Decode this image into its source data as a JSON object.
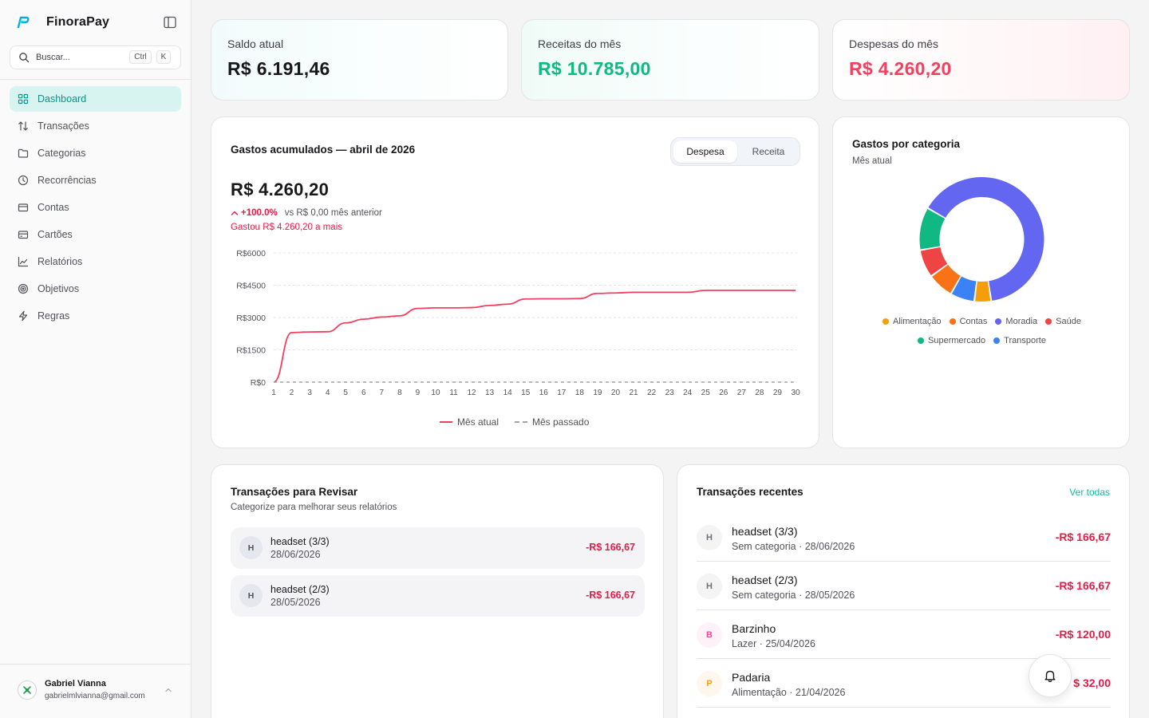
{
  "app": {
    "name": "FinoraPay",
    "accent": "#14b8a6"
  },
  "search": {
    "placeholder": "Buscar...",
    "kbd_ctrl": "Ctrl",
    "kbd_k": "K"
  },
  "nav": [
    {
      "label": "Dashboard",
      "icon": "grid-icon",
      "active": true
    },
    {
      "label": "Transações",
      "icon": "arrows-up-down-icon"
    },
    {
      "label": "Categorias",
      "icon": "folder-icon"
    },
    {
      "label": "Recorrências",
      "icon": "clock-icon"
    },
    {
      "label": "Contas",
      "icon": "wallet-icon"
    },
    {
      "label": "Cartões",
      "icon": "credit-card-icon"
    },
    {
      "label": "Relatórios",
      "icon": "chart-line-icon"
    },
    {
      "label": "Objetivos",
      "icon": "target-icon"
    },
    {
      "label": "Regras",
      "icon": "lightning-icon"
    }
  ],
  "user": {
    "name": "Gabriel Vianna",
    "email": "gabrielmlvianna@gmail.com"
  },
  "stats": {
    "balance": {
      "label": "Saldo atual",
      "value": "R$ 6.191,46"
    },
    "income": {
      "label": "Receitas do mês",
      "value": "R$ 10.785,00",
      "color": "#10b981"
    },
    "expense": {
      "label": "Despesas do mês",
      "value": "R$ 4.260,20",
      "color": "#f43f5e"
    }
  },
  "cumulative": {
    "title": "Gastos acumulados — abril de 2026",
    "toggle_on": "Despesa",
    "toggle_off": "Receita",
    "total": "R$ 4.260,20",
    "change_pct": "+100.0%",
    "vs_text": "vs R$ 0,00 mês anterior",
    "spent_more": "Gastou R$ 4.260,20 a mais",
    "legend_current": "Mês atual",
    "legend_previous": "Mês passado"
  },
  "chart_data": [
    {
      "type": "line",
      "x": [
        1,
        2,
        3,
        4,
        5,
        6,
        7,
        8,
        9,
        10,
        11,
        12,
        13,
        14,
        15,
        16,
        17,
        18,
        19,
        20,
        21,
        22,
        23,
        24,
        25,
        26,
        27,
        28,
        29,
        30
      ],
      "series": [
        {
          "name": "Mês atual",
          "color": "#f43f5e",
          "values": [
            0,
            2300,
            2330,
            2340,
            2750,
            2920,
            3020,
            3080,
            3420,
            3450,
            3450,
            3460,
            3560,
            3620,
            3860,
            3870,
            3870,
            3880,
            4120,
            4140,
            4170,
            4170,
            4170,
            4170,
            4260,
            4260,
            4260,
            4260,
            4260,
            4260
          ]
        },
        {
          "name": "Mês passado",
          "color": "#a1a1aa",
          "dashed": true,
          "values": [
            0,
            0,
            0,
            0,
            0,
            0,
            0,
            0,
            0,
            0,
            0,
            0,
            0,
            0,
            0,
            0,
            0,
            0,
            0,
            0,
            0,
            0,
            0,
            0,
            0,
            0,
            0,
            0,
            0,
            0
          ]
        }
      ],
      "yticks": [
        "R$0",
        "R$1500",
        "R$3000",
        "R$4500",
        "R$6000"
      ],
      "ylim": [
        0,
        6000
      ],
      "grid": true,
      "legend": "bottom-center"
    },
    {
      "type": "pie",
      "title": "Gastos por categoria",
      "subtitle": "Mês atual",
      "labels": [
        "Moradia",
        "Alimentação",
        "Transporte",
        "Contas",
        "Saúde",
        "Supermercado"
      ],
      "values": [
        66.5,
        4.5,
        6.5,
        7,
        7.5,
        11.5
      ],
      "colors": [
        "#6366f1",
        "#f59e0b",
        "#3b82f6",
        "#f97316",
        "#ef4444",
        "#10b981"
      ],
      "legend_order": [
        "Alimentação",
        "Contas",
        "Moradia",
        "Saúde",
        "Supermercado",
        "Transporte"
      ],
      "legend": "bottom-center"
    }
  ],
  "review": {
    "title": "Transações para Revisar",
    "subtitle": "Categorize para melhorar seus relatórios",
    "items": [
      {
        "initial": "H",
        "name": "headset (3/3)",
        "date": "28/06/2026",
        "amount": "-R$ 166,67"
      },
      {
        "initial": "H",
        "name": "headset (2/3)",
        "date": "28/05/2026",
        "amount": "-R$ 166,67"
      }
    ]
  },
  "recent": {
    "title": "Transações recentes",
    "see_all": "Ver todas",
    "items": [
      {
        "initial": "H",
        "name": "headset (3/3)",
        "meta": "Sem categoria · 28/06/2026",
        "amount": "-R$ 166,67",
        "avatar_bg": "#f4f4f5",
        "avatar_fg": "#71717a"
      },
      {
        "initial": "H",
        "name": "headset (2/3)",
        "meta": "Sem categoria · 28/05/2026",
        "amount": "-R$ 166,67",
        "avatar_bg": "#f4f4f5",
        "avatar_fg": "#71717a"
      },
      {
        "initial": "B",
        "name": "Barzinho",
        "meta": "Lazer · 25/04/2026",
        "amount": "-R$ 120,00",
        "avatar_bg": "#fdf2f8",
        "avatar_fg": "#ec4899"
      },
      {
        "initial": "P",
        "name": "Padaria",
        "meta": "Alimentação · 21/04/2026",
        "amount": "$ 32,00",
        "avatar_bg": "#fff7ed",
        "avatar_fg": "#f59e0b"
      }
    ]
  },
  "notifications": {
    "icon": "bell-icon"
  }
}
